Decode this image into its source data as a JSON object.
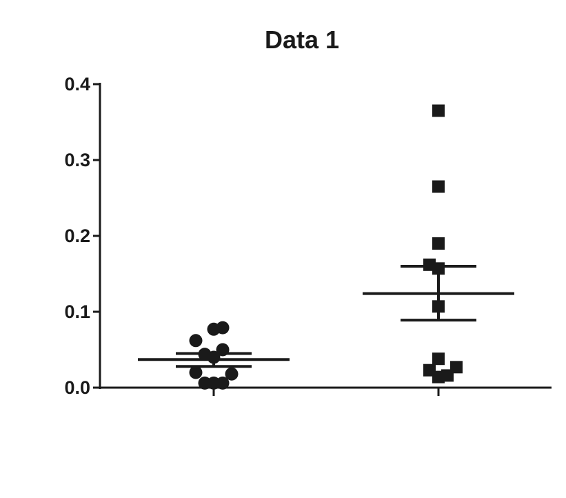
{
  "chart_data": {
    "type": "scatter",
    "title": "Data 1",
    "xlabel": "",
    "ylabel": "",
    "ylim": [
      0,
      0.4
    ],
    "yticks": [
      "0.0",
      "0.1",
      "0.2",
      "0.3",
      "0.4"
    ],
    "categories": [
      "",
      ""
    ],
    "grid": false,
    "legend": "none",
    "mark_color": "#1a1a1a",
    "series": [
      {
        "marker": "circle",
        "points": [
          {
            "x": -0.2,
            "y": 0.062
          },
          {
            "x": -0.2,
            "y": 0.02
          },
          {
            "x": -0.1,
            "y": 0.044
          },
          {
            "x": -0.1,
            "y": 0.006
          },
          {
            "x": 0.0,
            "y": 0.077
          },
          {
            "x": 0.0,
            "y": 0.04
          },
          {
            "x": 0.0,
            "y": 0.006
          },
          {
            "x": 0.1,
            "y": 0.079
          },
          {
            "x": 0.1,
            "y": 0.05
          },
          {
            "x": 0.1,
            "y": 0.006
          },
          {
            "x": 0.2,
            "y": 0.018
          }
        ],
        "mean": 0.037,
        "error_low": 0.028,
        "error_high": 0.045
      },
      {
        "marker": "square",
        "points": [
          {
            "x": 0.0,
            "y": 0.365
          },
          {
            "x": 0.0,
            "y": 0.265
          },
          {
            "x": 0.0,
            "y": 0.19
          },
          {
            "x": -0.1,
            "y": 0.162
          },
          {
            "x": 0.0,
            "y": 0.157
          },
          {
            "x": 0.0,
            "y": 0.107
          },
          {
            "x": 0.0,
            "y": 0.038
          },
          {
            "x": -0.1,
            "y": 0.023
          },
          {
            "x": 0.0,
            "y": 0.014
          },
          {
            "x": 0.1,
            "y": 0.016
          },
          {
            "x": 0.2,
            "y": 0.027
          }
        ],
        "mean": 0.124,
        "error_low": 0.089,
        "error_high": 0.16
      }
    ]
  }
}
